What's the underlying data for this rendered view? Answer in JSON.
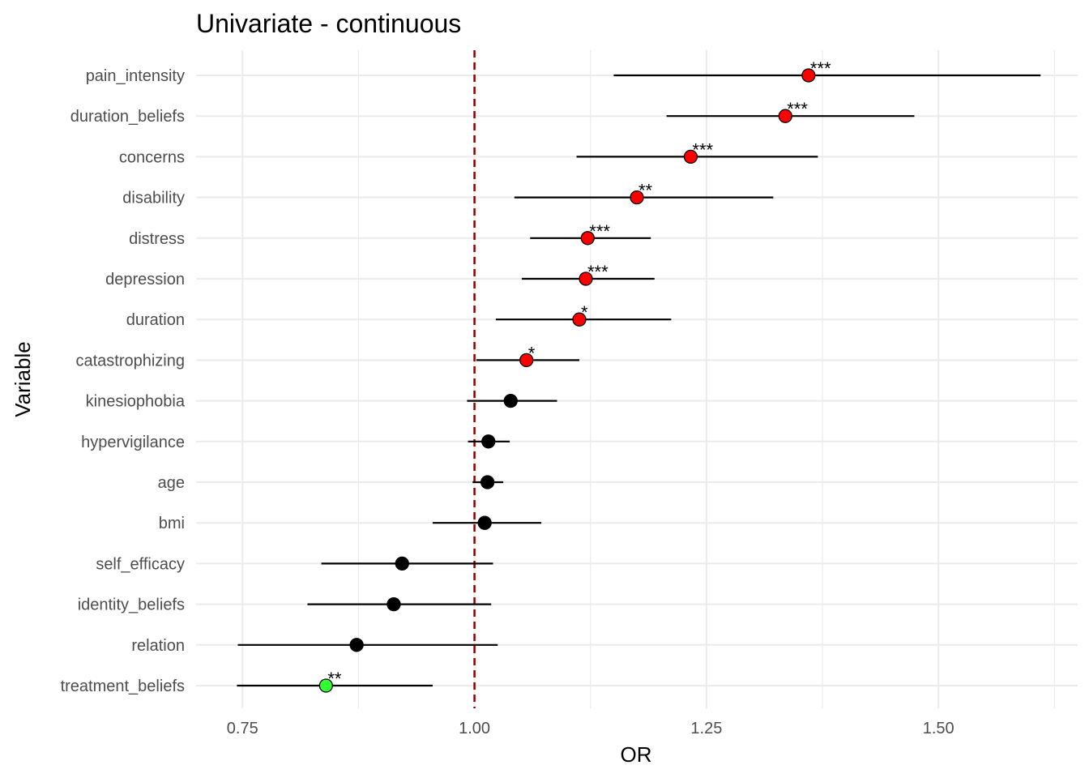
{
  "chart_data": {
    "type": "scatter",
    "subtype": "forest-plot",
    "title": "Univariate - continuous",
    "xlabel": "OR",
    "ylabel": "Variable",
    "xlim": [
      0.7,
      1.65
    ],
    "xticks": [
      0.75,
      1.0,
      1.25,
      1.5
    ],
    "xtick_labels": [
      "0.75",
      "1.00",
      "1.25",
      "1.50"
    ],
    "reference_line": 1.0,
    "reference_line_color": "#8b0000",
    "grid": true,
    "colors": {
      "significant_high": "#ff0000",
      "significant_low": "#33ff33",
      "not_significant": "#000000"
    },
    "rows": [
      {
        "variable": "pain_intensity",
        "or": 1.36,
        "lower": 1.15,
        "upper": 1.61,
        "sig": "***",
        "direction": "high"
      },
      {
        "variable": "duration_beliefs",
        "or": 1.335,
        "lower": 1.207,
        "upper": 1.474,
        "sig": "***",
        "direction": "high"
      },
      {
        "variable": "concerns",
        "or": 1.233,
        "lower": 1.11,
        "upper": 1.37,
        "sig": "***",
        "direction": "high"
      },
      {
        "variable": "disability",
        "or": 1.175,
        "lower": 1.043,
        "upper": 1.322,
        "sig": "**",
        "direction": "high"
      },
      {
        "variable": "distress",
        "or": 1.122,
        "lower": 1.06,
        "upper": 1.19,
        "sig": "***",
        "direction": "high"
      },
      {
        "variable": "depression",
        "or": 1.12,
        "lower": 1.051,
        "upper": 1.194,
        "sig": "***",
        "direction": "high"
      },
      {
        "variable": "duration",
        "or": 1.113,
        "lower": 1.023,
        "upper": 1.212,
        "sig": "*",
        "direction": "high"
      },
      {
        "variable": "catastrophizing",
        "or": 1.056,
        "lower": 1.002,
        "upper": 1.113,
        "sig": "*",
        "direction": "high"
      },
      {
        "variable": "kinesiophobia",
        "or": 1.039,
        "lower": 0.992,
        "upper": 1.089,
        "sig": "",
        "direction": "none"
      },
      {
        "variable": "hypervigilance",
        "or": 1.015,
        "lower": 0.993,
        "upper": 1.038,
        "sig": "",
        "direction": "none"
      },
      {
        "variable": "age",
        "or": 1.014,
        "lower": 0.998,
        "upper": 1.031,
        "sig": "",
        "direction": "none"
      },
      {
        "variable": "bmi",
        "or": 1.011,
        "lower": 0.955,
        "upper": 1.072,
        "sig": "",
        "direction": "none"
      },
      {
        "variable": "self_efficacy",
        "or": 0.922,
        "lower": 0.835,
        "upper": 1.02,
        "sig": "",
        "direction": "none"
      },
      {
        "variable": "identity_beliefs",
        "or": 0.913,
        "lower": 0.82,
        "upper": 1.018,
        "sig": "",
        "direction": "none"
      },
      {
        "variable": "relation",
        "or": 0.873,
        "lower": 0.745,
        "upper": 1.025,
        "sig": "",
        "direction": "none"
      },
      {
        "variable": "treatment_beliefs",
        "or": 0.84,
        "lower": 0.744,
        "upper": 0.955,
        "sig": "**",
        "direction": "low"
      }
    ]
  }
}
